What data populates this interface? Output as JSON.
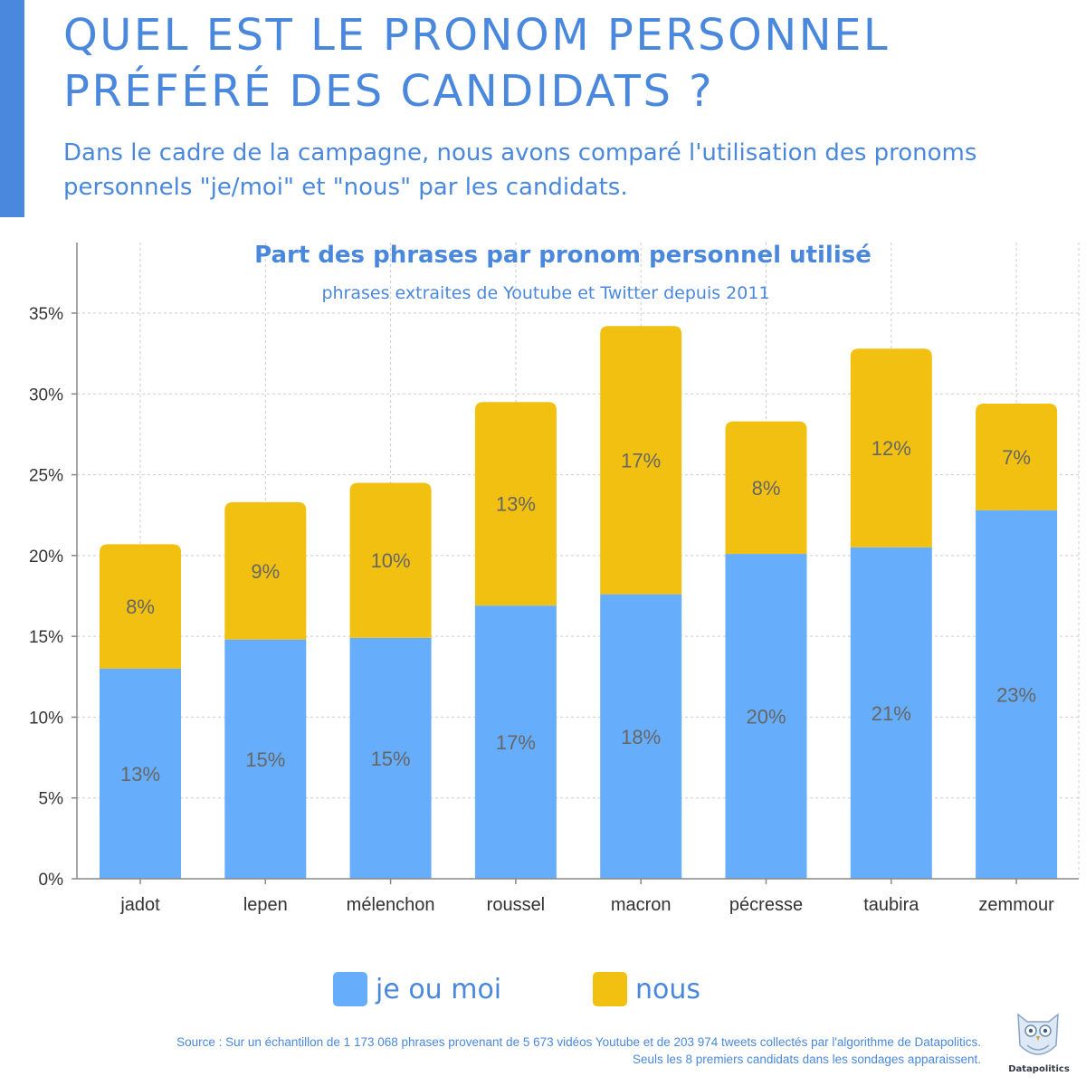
{
  "header": {
    "title": "QUEL EST LE PRONOM PERSONNEL PRÉFÉRÉ DES CANDIDATS ?",
    "subtitle": "Dans le cadre de la campagne, nous avons comparé l'utilisation des pronoms personnels \"je/moi\" et \"nous\" par les candidats."
  },
  "chart_data": {
    "type": "bar",
    "stacked": true,
    "title": "Part des phrases par pronom personnel utilisé",
    "subtitle": "phrases extraites de Youtube et Twitter depuis 2011",
    "categories": [
      "jadot",
      "lepen",
      "mélenchon",
      "roussel",
      "macron",
      "pécresse",
      "taubira",
      "zemmour"
    ],
    "series": [
      {
        "name": "je ou moi",
        "color": "#66aefc",
        "values": [
          13.0,
          14.8,
          14.9,
          16.9,
          17.6,
          20.1,
          20.5,
          22.8
        ],
        "labels": [
          "13%",
          "15%",
          "15%",
          "17%",
          "18%",
          "20%",
          "21%",
          "23%"
        ]
      },
      {
        "name": "nous",
        "color": "#f2c010",
        "values": [
          7.7,
          8.5,
          9.6,
          12.6,
          16.6,
          8.2,
          12.3,
          6.6
        ],
        "labels": [
          "8%",
          "9%",
          "10%",
          "13%",
          "17%",
          "8%",
          "12%",
          "7%"
        ]
      }
    ],
    "ylim": [
      0,
      35
    ],
    "yticks": [
      0,
      5,
      10,
      15,
      20,
      25,
      30,
      35
    ],
    "ytick_labels": [
      "0%",
      "5%",
      "10%",
      "15%",
      "20%",
      "25%",
      "30%",
      "35%"
    ],
    "xlabel": "",
    "ylabel": "",
    "grid": true,
    "legend_position": "bottom"
  },
  "legend": {
    "items": [
      {
        "label": "je ou moi",
        "color": "#66aefc"
      },
      {
        "label": "nous",
        "color": "#f2c010"
      }
    ]
  },
  "footer": {
    "source_line1": "Source :   Sur un échantillon de 1 173 068 phrases provenant de 5 673 vidéos Youtube et  de 203 974 tweets  collectés par l'algorithme de Datapolitics.",
    "source_line2": "Seuls les 8 premiers candidats dans les sondages apparaissent.",
    "logo_text": "Datapolitics",
    "logo_icon": "owl-icon"
  }
}
